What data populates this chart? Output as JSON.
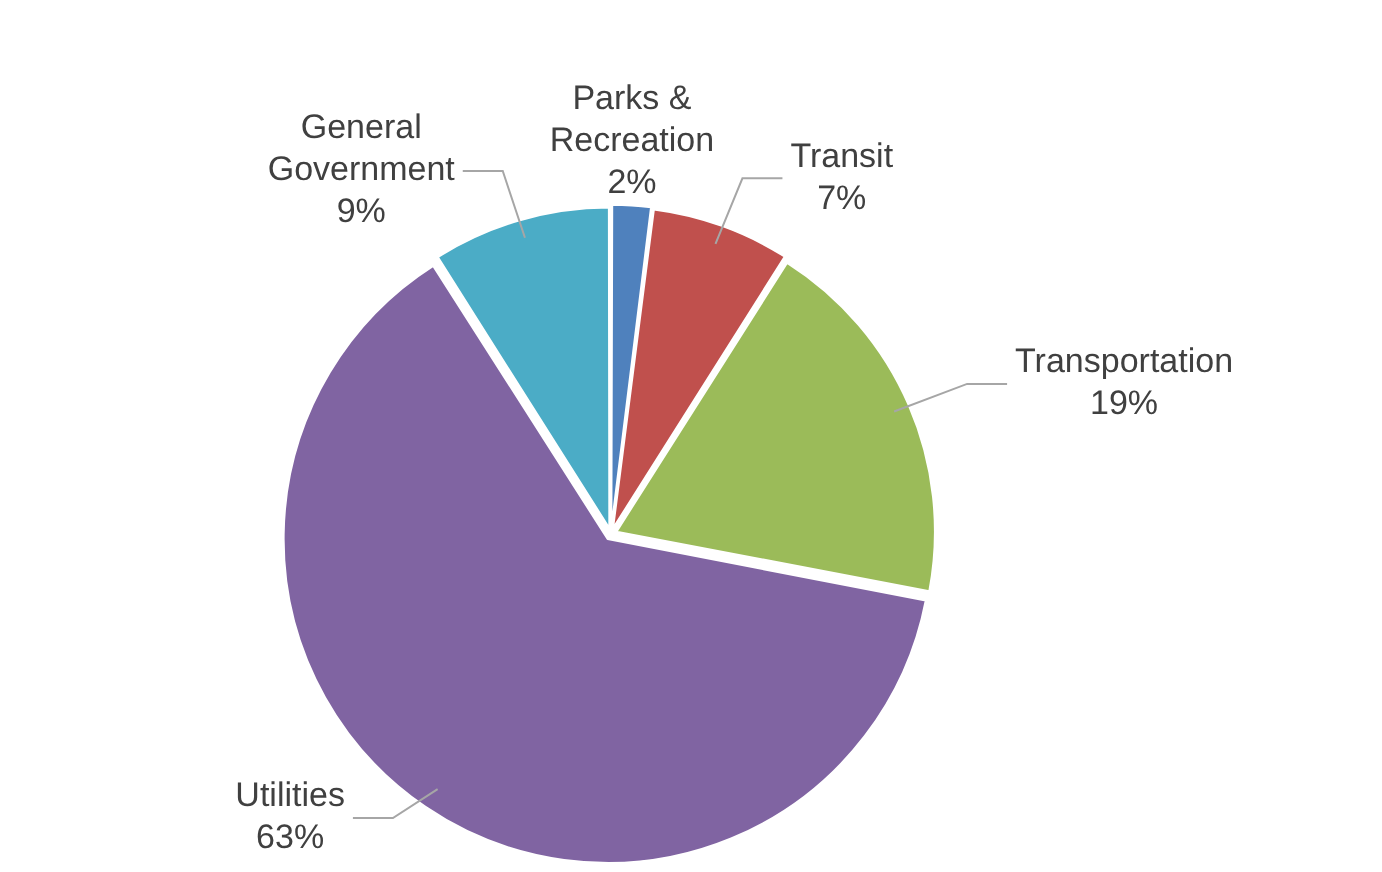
{
  "chart_data": {
    "type": "pie",
    "categories": [
      "Parks & Recreation",
      "Transit",
      "Transportation",
      "Utilities",
      "General Government"
    ],
    "values": [
      2,
      7,
      19,
      63,
      9
    ],
    "colors": [
      "#4f81bd",
      "#c0504d",
      "#9bbb59",
      "#8064a2",
      "#4bacc6"
    ],
    "value_labels": [
      "2%",
      "7%",
      "19%",
      "63%",
      "9%"
    ],
    "legend": false
  }
}
